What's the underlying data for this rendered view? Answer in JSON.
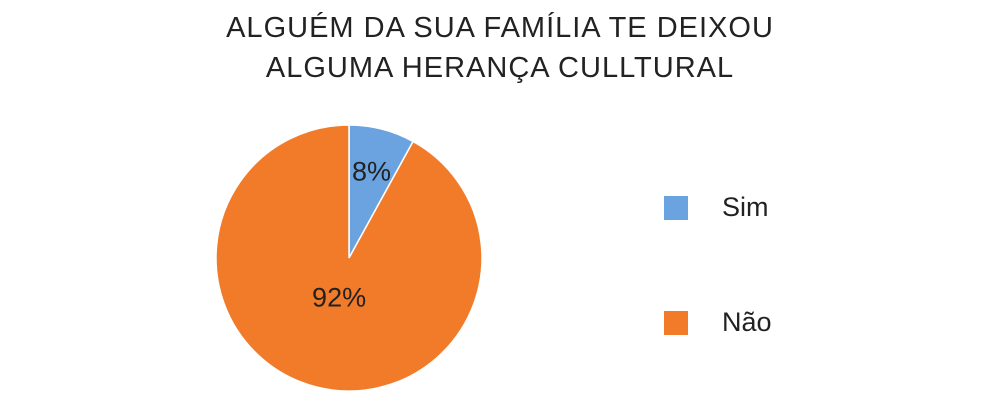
{
  "chart_data": {
    "type": "pie",
    "title_lines": [
      "ALGUÉM DA SUA FAMÍLIA TE DEIXOU",
      "ALGUMA HERANÇA CULLTURAL"
    ],
    "slices": [
      {
        "name": "Sim",
        "value": 8,
        "label": "8%",
        "color": "#6aa3e0"
      },
      {
        "name": "Não",
        "value": 92,
        "label": "92%",
        "color": "#f27b2a"
      }
    ],
    "legend_position": "right"
  }
}
